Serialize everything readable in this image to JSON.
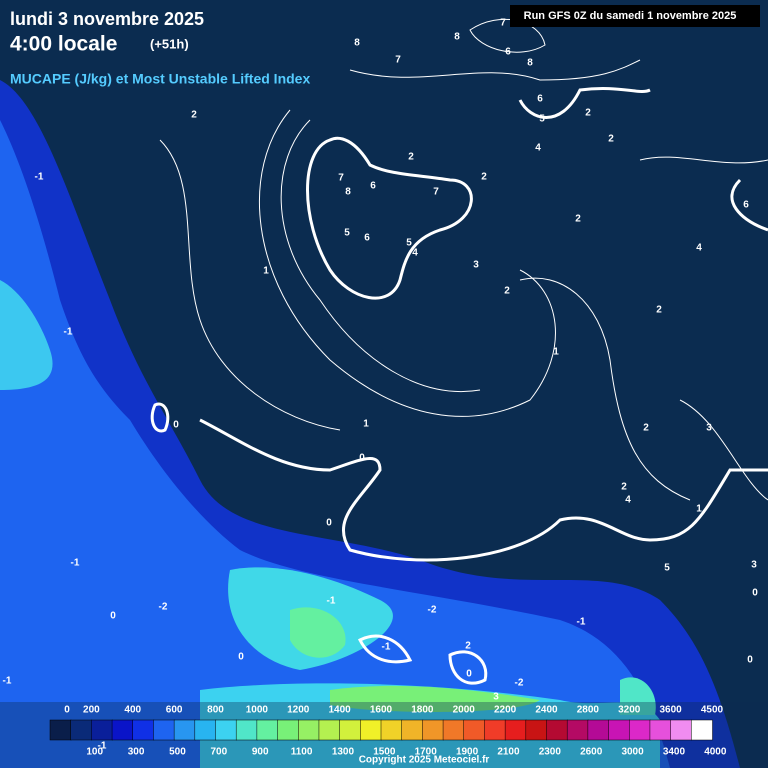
{
  "header": {
    "date": "lundi 3 novembre 2025",
    "time": "4:00 locale",
    "lead": "(+51h)",
    "title": "MUCAPE (J/kg) et Most Unstable Lifted Index",
    "run": "Run GFS 0Z du samedi 1 novembre 2025"
  },
  "contour_labels": [
    "8",
    "8",
    "7",
    "6",
    "8",
    "7",
    "2",
    "-1",
    "6",
    "5",
    "4",
    "2",
    "2",
    "2",
    "2",
    "7",
    "6",
    "8",
    "7",
    "2",
    "6",
    "5",
    "6",
    "5",
    "4",
    "4",
    "3",
    "1",
    "2",
    "2",
    "-1",
    "1",
    "0",
    "1",
    "2",
    "3",
    "0",
    "2",
    "4",
    "1",
    "0",
    "-1",
    "5",
    "3",
    "0",
    "0",
    "-2",
    "-1",
    "-2",
    "-1",
    "-1",
    "2",
    "0",
    "0",
    "0",
    "-1",
    "-1",
    "-2",
    "3"
  ],
  "colorbar": {
    "colors": [
      "#0a1e4a",
      "#0a2a78",
      "#0a1f9a",
      "#0a14c8",
      "#1030e6",
      "#1e64f0",
      "#2896f0",
      "#28b4f0",
      "#3cd2f0",
      "#50e6c8",
      "#64f0a0",
      "#78f078",
      "#96f064",
      "#b4f050",
      "#d2f03c",
      "#f0f028",
      "#f0d228",
      "#f0b428",
      "#f09628",
      "#f07828",
      "#f05a28",
      "#f03c28",
      "#e61e1e",
      "#c81414",
      "#b40a32",
      "#b40a64",
      "#b40a96",
      "#c814b4",
      "#dc28c8",
      "#e650dc",
      "#f08cf0",
      "#ffffff"
    ],
    "top_labels": [
      0,
      200,
      400,
      600,
      800,
      1000,
      1200,
      1400,
      1600,
      1800,
      2000,
      2200,
      2400,
      2800,
      3200,
      3600,
      4500
    ],
    "bottom_labels": [
      100,
      300,
      500,
      700,
      900,
      1100,
      1300,
      1500,
      1700,
      1900,
      2100,
      2300,
      2600,
      3000,
      3400,
      4000
    ]
  },
  "copyright": "Copyright 2025 Meteociel.fr"
}
